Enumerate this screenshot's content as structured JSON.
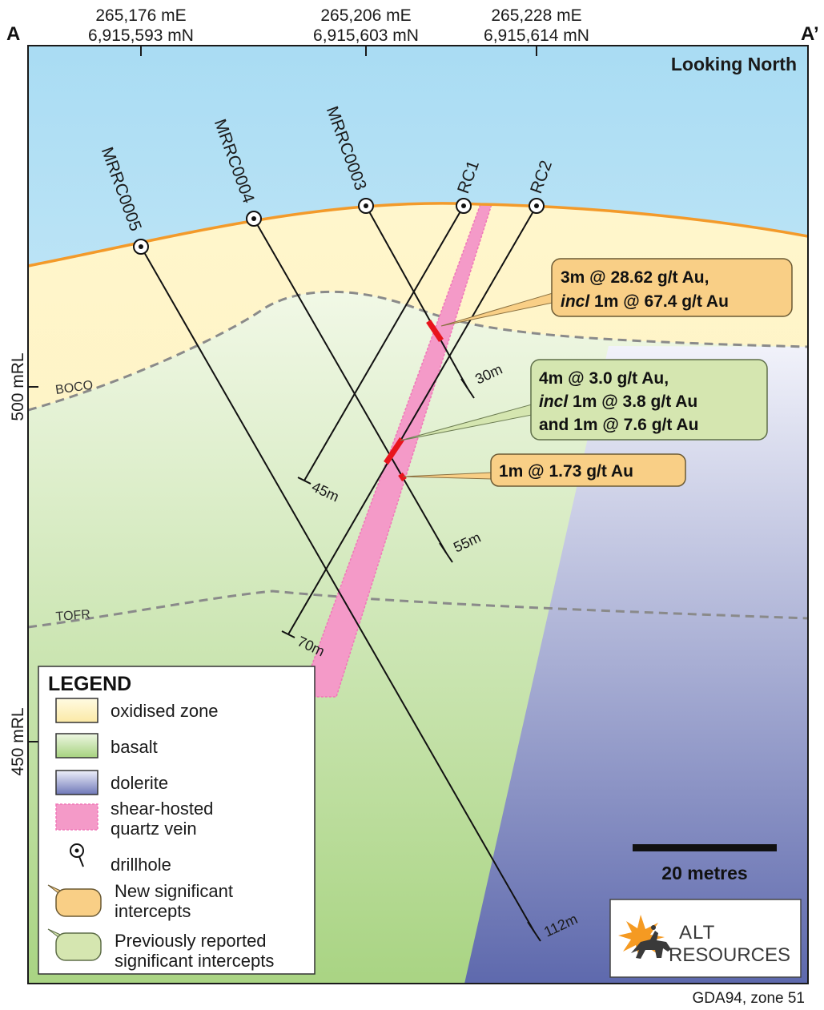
{
  "section": {
    "left_label": "A",
    "right_label": "A’",
    "view": "Looking North",
    "datum": "GDA94, zone 51"
  },
  "coordinates": [
    {
      "east": "265,176 mE",
      "north": "6,915,593 mN"
    },
    {
      "east": "265,206 mE",
      "north": "6,915,603 mN"
    },
    {
      "east": "265,228 mE",
      "north": "6,915,614 mN"
    }
  ],
  "elevations": [
    "500 mRL",
    "450 mRL"
  ],
  "boundaries": [
    "BOCO",
    "TOFR"
  ],
  "drillholes": [
    {
      "name": "MRRC0005",
      "depth": "112m"
    },
    {
      "name": "MRRC0004",
      "depth": "55m"
    },
    {
      "name": "MRRC0003",
      "depth": "30m"
    },
    {
      "name": "RC1",
      "depth": "45m"
    },
    {
      "name": "RC2",
      "depth": "70m"
    }
  ],
  "intercepts": [
    {
      "status": "new",
      "lines": [
        "3m @ 28.62 g/t Au,",
        "incl 1m @ 67.4 g/t Au"
      ]
    },
    {
      "status": "previous",
      "lines": [
        "4m @ 3.0 g/t Au,",
        "incl 1m @ 3.8 g/t Au",
        "and 1m @ 7.6 g/t Au"
      ]
    },
    {
      "status": "new",
      "lines": [
        "1m @ 1.73 g/t Au"
      ]
    }
  ],
  "scale_bar": "20 metres",
  "logo": {
    "line1": "ALT",
    "line2": "RESOURCES"
  },
  "legend": {
    "title": "LEGEND",
    "items": [
      {
        "label": "oxidised zone"
      },
      {
        "label": "basalt"
      },
      {
        "label": "dolerite"
      },
      {
        "label": "shear-hosted",
        "label2": "quartz vein"
      },
      {
        "label": "drillhole"
      },
      {
        "label": "New significant",
        "label2": "intercepts"
      },
      {
        "label": "Previously reported",
        "label2": "significant intercepts"
      }
    ]
  },
  "colors": {
    "topography": "#f39a2a",
    "vein": "#f49ac8",
    "intercept_mark": "#e8141c",
    "new_callout": "#f9cf86",
    "previous_callout": "#d5e6b0",
    "sky": "#bfe3f5",
    "oxidised": "#fff3c0",
    "basalt": "#c8e3a8",
    "dolerite": "#8f97cb"
  }
}
